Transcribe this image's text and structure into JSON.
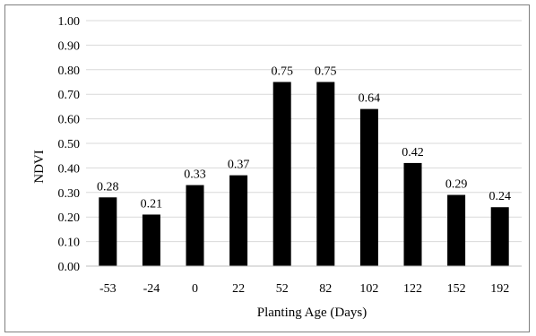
{
  "chart_data": {
    "type": "bar",
    "categories": [
      "-53",
      "-24",
      "0",
      "22",
      "52",
      "82",
      "102",
      "122",
      "152",
      "192"
    ],
    "values": [
      0.28,
      0.21,
      0.33,
      0.37,
      0.75,
      0.75,
      0.64,
      0.42,
      0.29,
      0.24
    ],
    "data_labels": [
      "0.28",
      "0.21",
      "0.33",
      "0.37",
      "0.75",
      "0.75",
      "0.64",
      "0.42",
      "0.29",
      "0.24"
    ],
    "xlabel": "Planting Age (Days)",
    "ylabel": "NDVI",
    "ylim": [
      0,
      1.0
    ],
    "yticks": [
      "0.00",
      "0.10",
      "0.20",
      "0.30",
      "0.40",
      "0.50",
      "0.60",
      "0.70",
      "0.80",
      "0.90",
      "1.00"
    ],
    "grid": true,
    "bar_color": "#000000",
    "grid_color": "#d9d9d9"
  }
}
